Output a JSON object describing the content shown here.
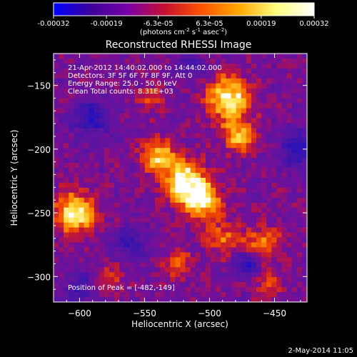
{
  "colorbar": {
    "tick_labels": [
      "-0.00032",
      "-0.00019",
      "-6.3e-05",
      "6.3e-05",
      "0.00019",
      "0.00032"
    ],
    "tick_values": [
      -0.00032,
      -0.00019,
      -6.3e-05,
      6.3e-05,
      0.00019,
      0.00032
    ],
    "range": [
      -0.00032,
      0.00032
    ],
    "units_prefix": "(photons cm",
    "units_exp1": "-2",
    "units_mid1": " s",
    "units_exp2": "-1",
    "units_mid2": " asec",
    "units_exp3": "-2",
    "units_suffix": ")",
    "colors": [
      "#0000ff",
      "#3b0099",
      "#7a00a8",
      "#c8102e",
      "#ff5500",
      "#ffaa00",
      "#ffff80",
      "#ffffff"
    ]
  },
  "chart_data": {
    "type": "heatmap",
    "title": "Reconstructed RHESSI Image",
    "xlabel": "Heliocentric X (arcsec)",
    "ylabel": "Heliocentric Y (arcsec)",
    "xlim": [
      -620,
      -425
    ],
    "ylim": [
      -320,
      -125
    ],
    "xticks": [
      -600,
      -550,
      -500,
      -450
    ],
    "yticks": [
      -150,
      -200,
      -250,
      -300
    ],
    "xtick_labels": [
      "−600",
      "−550",
      "−500",
      "−450"
    ],
    "ytick_labels": [
      "−150",
      "−200",
      "−250",
      "−300"
    ],
    "annotations": [
      "21-Apr-2012 14:40:02.000 to 14:44:02.000",
      "Detectors: 3F 5F 6F 7F 8F 9F, Att 0",
      "Energy Range: 25.0 - 50.0 keV",
      "Clean    Total counts: 8.31E+03"
    ],
    "peak_label": "Position of Peak = [-482,-149]",
    "peak": [
      -482,
      -149
    ],
    "sources": [
      {
        "x": -603,
        "y": -250,
        "sigma": 11,
        "amp": 1.0
      },
      {
        "x": -540,
        "y": -205,
        "sigma": 9,
        "amp": 0.75
      },
      {
        "x": -520,
        "y": -225,
        "sigma": 12,
        "amp": 0.95
      },
      {
        "x": -505,
        "y": -240,
        "sigma": 10,
        "amp": 0.9
      },
      {
        "x": -485,
        "y": -160,
        "sigma": 12,
        "amp": 0.95
      },
      {
        "x": -478,
        "y": -190,
        "sigma": 9,
        "amp": 0.7
      },
      {
        "x": -490,
        "y": -270,
        "sigma": 9,
        "amp": 0.55
      },
      {
        "x": -460,
        "y": -275,
        "sigma": 10,
        "amp": 0.6
      },
      {
        "x": -545,
        "y": -160,
        "sigma": 7,
        "amp": 0.45
      },
      {
        "x": -525,
        "y": -290,
        "sigma": 8,
        "amp": 0.45
      },
      {
        "x": -455,
        "y": -305,
        "sigma": 8,
        "amp": 0.4
      },
      {
        "x": -575,
        "y": -300,
        "sigma": 7,
        "amp": 0.35
      }
    ],
    "negative_sources": [
      {
        "x": -590,
        "y": -175,
        "sigma": 10,
        "amp": 0.6
      },
      {
        "x": -600,
        "y": -310,
        "sigma": 8,
        "amp": 0.45
      },
      {
        "x": -560,
        "y": -275,
        "sigma": 9,
        "amp": 0.5
      },
      {
        "x": -470,
        "y": -290,
        "sigma": 7,
        "amp": 0.7
      },
      {
        "x": -432,
        "y": -200,
        "sigma": 10,
        "amp": 0.6
      },
      {
        "x": -515,
        "y": -135,
        "sigma": 8,
        "amp": 0.4
      }
    ]
  },
  "footer": {
    "timestamp": "2-May-2014 11:05"
  }
}
